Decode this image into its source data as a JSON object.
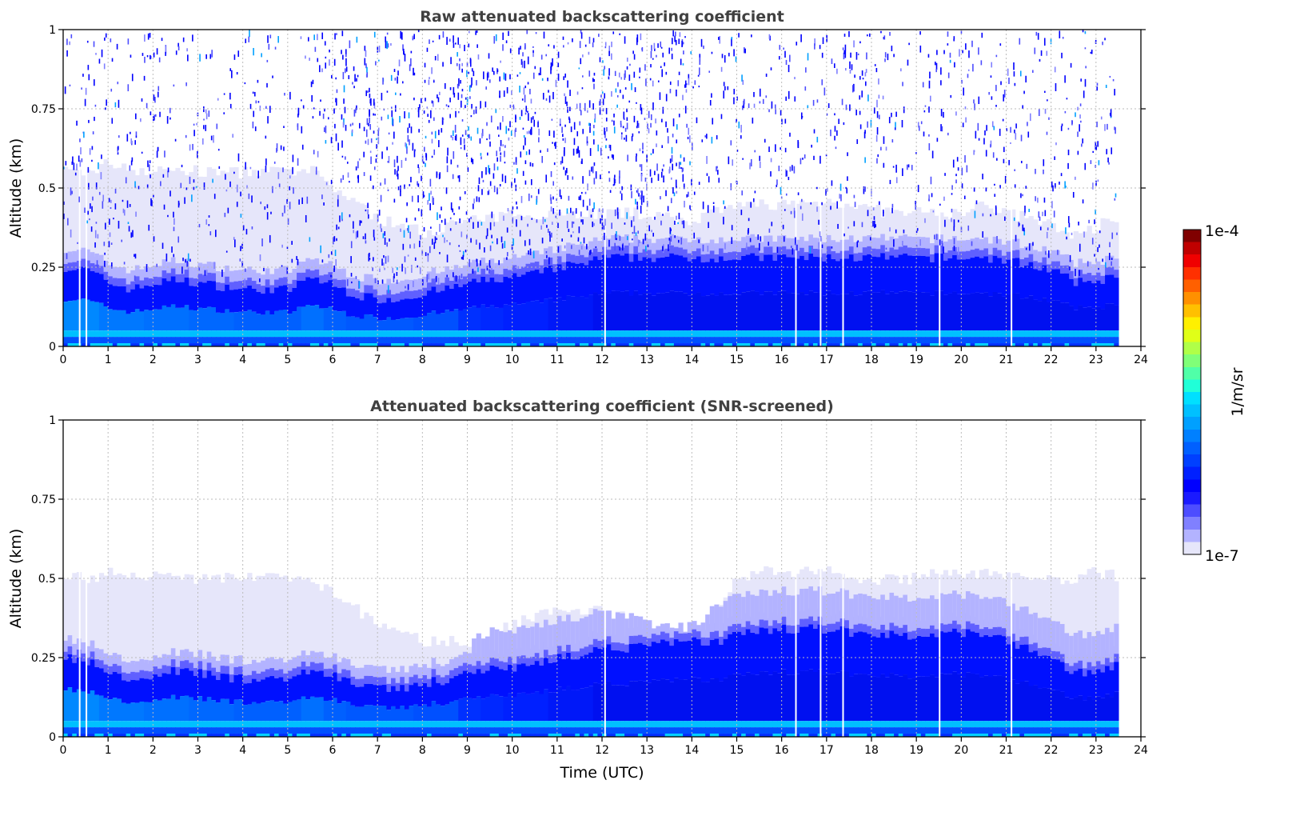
{
  "chart_data": [
    {
      "type": "heatmap",
      "title": "Raw attenuated backscattering coefficient",
      "xlabel": "",
      "ylabel": "Altitude (km)",
      "xlim": [
        0,
        24
      ],
      "ylim": [
        0,
        1
      ],
      "xticks": [
        "0",
        "1",
        "2",
        "3",
        "4",
        "5",
        "6",
        "7",
        "8",
        "9",
        "10",
        "11",
        "12",
        "13",
        "14",
        "15",
        "16",
        "17",
        "18",
        "19",
        "20",
        "21",
        "22",
        "23",
        "24"
      ],
      "yticks": [
        "0",
        "0.25",
        "0.5",
        "0.75",
        "1"
      ],
      "grid": true,
      "data_end_hour": 23.5,
      "noisy": true,
      "hours": [
        0,
        0.5,
        1,
        1.5,
        2,
        2.5,
        3,
        3.5,
        4,
        4.5,
        5,
        5.5,
        6,
        6.5,
        7,
        7.5,
        8,
        8.5,
        9,
        9.5,
        10,
        10.5,
        11,
        11.5,
        12,
        12.5,
        13,
        13.5,
        14,
        14.5,
        15,
        15.5,
        16,
        16.5,
        17,
        17.5,
        18,
        18.5,
        19,
        19.5,
        20,
        20.5,
        21,
        21.5,
        22,
        22.5,
        23,
        23.5
      ],
      "mixed_layer_top_km": [
        0.25,
        0.24,
        0.2,
        0.18,
        0.2,
        0.21,
        0.2,
        0.19,
        0.18,
        0.18,
        0.18,
        0.22,
        0.19,
        0.16,
        0.15,
        0.15,
        0.17,
        0.18,
        0.2,
        0.21,
        0.22,
        0.23,
        0.25,
        0.26,
        0.28,
        0.28,
        0.28,
        0.28,
        0.28,
        0.28,
        0.28,
        0.28,
        0.28,
        0.28,
        0.28,
        0.28,
        0.28,
        0.28,
        0.28,
        0.28,
        0.28,
        0.28,
        0.27,
        0.26,
        0.24,
        0.2,
        0.21,
        0.22
      ],
      "aerosol_top_km": [
        0.55,
        0.55,
        0.58,
        0.56,
        0.55,
        0.56,
        0.55,
        0.55,
        0.55,
        0.55,
        0.55,
        0.55,
        0.5,
        0.45,
        0.4,
        0.38,
        0.36,
        0.38,
        0.4,
        0.4,
        0.42,
        0.42,
        0.42,
        0.42,
        0.42,
        0.42,
        0.42,
        0.4,
        0.4,
        0.42,
        0.44,
        0.45,
        0.45,
        0.45,
        0.46,
        0.45,
        0.43,
        0.42,
        0.42,
        0.42,
        0.42,
        0.45,
        0.42,
        0.4,
        0.38,
        0.35,
        0.38,
        0.42
      ],
      "bulk_color_hex": [
        "#0088ff",
        "#0088ff",
        "#0078ff",
        "#0078ff",
        "#0070ff",
        "#0070ff",
        "#0068ff",
        "#0068ff",
        "#0060ff",
        "#0060ff",
        "#0060ff",
        "#0070ff",
        "#0060ff",
        "#0058ff",
        "#0058ff",
        "#0058ff",
        "#0050ff",
        "#0050ff",
        "#0030ff",
        "#0028ff",
        "#0020ff",
        "#0020ff",
        "#0018f8",
        "#0018f8",
        "#0010f0",
        "#0010f0",
        "#0010f0",
        "#0010f0",
        "#0010f0",
        "#0010f0",
        "#0010f0",
        "#0010f0",
        "#0010f0",
        "#0010f0",
        "#0010f0",
        "#0010f0",
        "#0010f0",
        "#0010f0",
        "#0010f0",
        "#0010f0",
        "#0010f0",
        "#0010f0",
        "#0010f0",
        "#0010f0",
        "#0010f0",
        "#0010f0",
        "#0010f0",
        "#0010f0"
      ],
      "gap_hours": [
        0.35,
        0.5,
        12.05,
        16.3,
        16.85,
        17.35,
        19.5,
        21.1
      ]
    },
    {
      "type": "heatmap",
      "title": "Attenuated backscattering coefficient (SNR-screened)",
      "xlabel": "Time (UTC)",
      "ylabel": "Altitude (km)",
      "xlim": [
        0,
        24
      ],
      "ylim": [
        0,
        1
      ],
      "xticks": [
        "0",
        "1",
        "2",
        "3",
        "4",
        "5",
        "6",
        "7",
        "8",
        "9",
        "10",
        "11",
        "12",
        "13",
        "14",
        "15",
        "16",
        "17",
        "18",
        "19",
        "20",
        "21",
        "22",
        "23",
        "24"
      ],
      "yticks": [
        "0",
        "0.25",
        "0.5",
        "0.75",
        "1"
      ],
      "grid": true,
      "data_end_hour": 23.5,
      "noisy": false,
      "hours": [
        0,
        0.5,
        1,
        1.5,
        2,
        2.5,
        3,
        3.5,
        4,
        4.5,
        5,
        5.5,
        6,
        6.5,
        7,
        7.5,
        8,
        8.5,
        9,
        9.5,
        10,
        10.5,
        11,
        11.5,
        12,
        12.5,
        13,
        13.5,
        14,
        14.5,
        15,
        15.5,
        16,
        16.5,
        17,
        17.5,
        18,
        18.5,
        19,
        19.5,
        20,
        20.5,
        21,
        21.5,
        22,
        22.5,
        23,
        23.5
      ],
      "mixed_layer_top_km": [
        0.25,
        0.24,
        0.2,
        0.18,
        0.2,
        0.21,
        0.2,
        0.19,
        0.18,
        0.18,
        0.18,
        0.22,
        0.19,
        0.16,
        0.15,
        0.15,
        0.17,
        0.18,
        0.2,
        0.21,
        0.22,
        0.23,
        0.25,
        0.26,
        0.28,
        0.28,
        0.29,
        0.3,
        0.3,
        0.3,
        0.32,
        0.34,
        0.34,
        0.34,
        0.34,
        0.33,
        0.32,
        0.32,
        0.32,
        0.33,
        0.33,
        0.33,
        0.3,
        0.28,
        0.25,
        0.2,
        0.21,
        0.23
      ],
      "aerosol_top_km": [
        0.5,
        0.5,
        0.52,
        0.5,
        0.52,
        0.5,
        0.5,
        0.5,
        0.5,
        0.5,
        0.5,
        0.48,
        0.45,
        0.4,
        0.36,
        0.33,
        0.3,
        0.3,
        0.3,
        0.33,
        0.36,
        0.38,
        0.4,
        0.4,
        0.4,
        0.38,
        0.36,
        0.35,
        0.35,
        0.42,
        0.5,
        0.52,
        0.52,
        0.52,
        0.52,
        0.5,
        0.5,
        0.5,
        0.5,
        0.52,
        0.52,
        0.52,
        0.5,
        0.5,
        0.5,
        0.5,
        0.52,
        0.5
      ],
      "bulk_color_hex": [
        "#0088ff",
        "#0088ff",
        "#0078ff",
        "#0078ff",
        "#0070ff",
        "#0070ff",
        "#0068ff",
        "#0068ff",
        "#0060ff",
        "#0060ff",
        "#0060ff",
        "#0070ff",
        "#0060ff",
        "#0058ff",
        "#0058ff",
        "#0058ff",
        "#0050ff",
        "#0050ff",
        "#0030ff",
        "#0028ff",
        "#0020ff",
        "#0020ff",
        "#0018f8",
        "#0018f8",
        "#0010f0",
        "#0010f0",
        "#0010f0",
        "#0010f0",
        "#0010f0",
        "#0010f0",
        "#0010f0",
        "#0010f0",
        "#0010f0",
        "#0010f0",
        "#0010f0",
        "#0010f0",
        "#0010f0",
        "#0010f0",
        "#0010f0",
        "#0010f0",
        "#0010f0",
        "#0010f0",
        "#0010f0",
        "#0010f0",
        "#0010f0",
        "#0010f0",
        "#0010f0",
        "#0010f0"
      ],
      "gap_hours": [
        0.35,
        0.5,
        12.05,
        16.3,
        16.85,
        17.35,
        19.5,
        21.1
      ]
    }
  ],
  "colorbar": {
    "label": "1/m/sr",
    "max_label": "1e-4",
    "min_label": "1e-7",
    "range": [
      1e-07,
      0.0001
    ],
    "colors": [
      "#e6e6fa",
      "#b3b3ff",
      "#8080ff",
      "#4d4dff",
      "#1a1aff",
      "#0000ff",
      "#0020ff",
      "#0040ff",
      "#0060ff",
      "#0080ff",
      "#00a0ff",
      "#00c0ff",
      "#00e0ff",
      "#20ffd8",
      "#50ffa8",
      "#80ff78",
      "#b0ff48",
      "#e0ff18",
      "#fff000",
      "#ffc000",
      "#ff9000",
      "#ff6000",
      "#ff3000",
      "#f00000",
      "#c00000",
      "#800000"
    ]
  }
}
